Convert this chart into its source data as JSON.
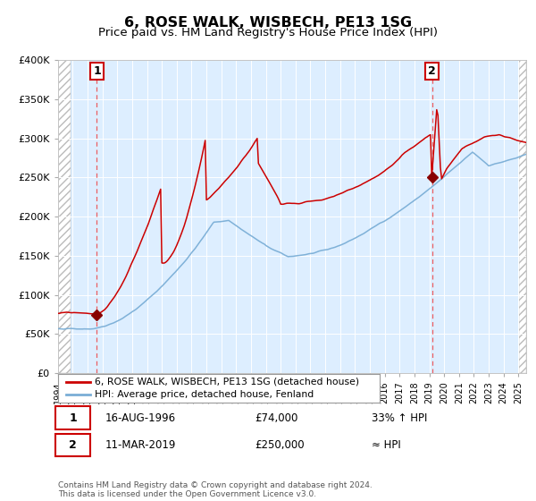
{
  "title": "6, ROSE WALK, WISBECH, PE13 1SG",
  "subtitle": "Price paid vs. HM Land Registry's House Price Index (HPI)",
  "legend_line1": "6, ROSE WALK, WISBECH, PE13 1SG (detached house)",
  "legend_line2": "HPI: Average price, detached house, Fenland",
  "annotation1_date": "16-AUG-1996",
  "annotation1_price": "£74,000",
  "annotation1_hpi": "33% ↑ HPI",
  "annotation2_date": "11-MAR-2019",
  "annotation2_price": "£250,000",
  "annotation2_hpi": "≈ HPI",
  "copyright": "Contains HM Land Registry data © Crown copyright and database right 2024.\nThis data is licensed under the Open Government Licence v3.0.",
  "red_color": "#cc0000",
  "blue_color": "#7aaed6",
  "bg_color": "#ddeeff",
  "dashed_color": "#ee4444",
  "ylim": [
    0,
    400000
  ],
  "yticks": [
    0,
    50000,
    100000,
    150000,
    200000,
    250000,
    300000,
    350000,
    400000
  ],
  "ytick_labels": [
    "£0",
    "£50K",
    "£100K",
    "£150K",
    "£200K",
    "£250K",
    "£300K",
    "£350K",
    "£400K"
  ],
  "sale1_x": 1996.625,
  "sale1_y": 74000,
  "sale2_x": 2019.19,
  "sale2_y": 250000,
  "marker_color": "#880000",
  "xlim_left": 1994.0,
  "xlim_right": 2025.5
}
